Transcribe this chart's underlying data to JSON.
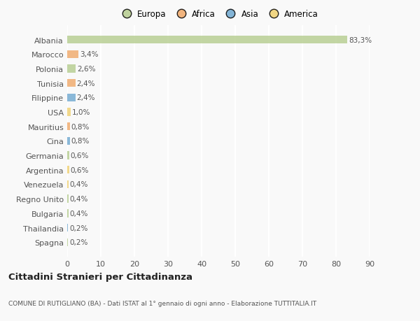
{
  "countries": [
    "Albania",
    "Marocco",
    "Polonia",
    "Tunisia",
    "Filippine",
    "USA",
    "Mauritius",
    "Cina",
    "Germania",
    "Argentina",
    "Venezuela",
    "Regno Unito",
    "Bulgaria",
    "Thailandia",
    "Spagna"
  ],
  "values": [
    83.3,
    3.4,
    2.6,
    2.4,
    2.4,
    1.0,
    0.8,
    0.8,
    0.6,
    0.6,
    0.4,
    0.4,
    0.4,
    0.2,
    0.2
  ],
  "labels": [
    "83,3%",
    "3,4%",
    "2,6%",
    "2,4%",
    "2,4%",
    "1,0%",
    "0,8%",
    "0,8%",
    "0,6%",
    "0,6%",
    "0,4%",
    "0,4%",
    "0,4%",
    "0,2%",
    "0,2%"
  ],
  "colors": [
    "#b5cc8e",
    "#f0a868",
    "#b5cc8e",
    "#f0a868",
    "#6fa8d0",
    "#f0d070",
    "#f0a868",
    "#6fa8d0",
    "#b5cc8e",
    "#f0d070",
    "#f0d070",
    "#b5cc8e",
    "#b5cc8e",
    "#6fa8d0",
    "#b5cc8e"
  ],
  "legend_labels": [
    "Europa",
    "Africa",
    "Asia",
    "America"
  ],
  "legend_colors": [
    "#b5cc8e",
    "#f0a868",
    "#6fa8d0",
    "#f0d070"
  ],
  "title": "Cittadini Stranieri per Cittadinanza",
  "subtitle": "COMUNE DI RUTIGLIANO (BA) - Dati ISTAT al 1° gennaio di ogni anno - Elaborazione TUTTITALIA.IT",
  "xlim": [
    0,
    90
  ],
  "xticks": [
    0,
    10,
    20,
    30,
    40,
    50,
    60,
    70,
    80,
    90
  ],
  "background_color": "#f9f9f9",
  "grid_color": "#ffffff",
  "bar_height": 0.55
}
